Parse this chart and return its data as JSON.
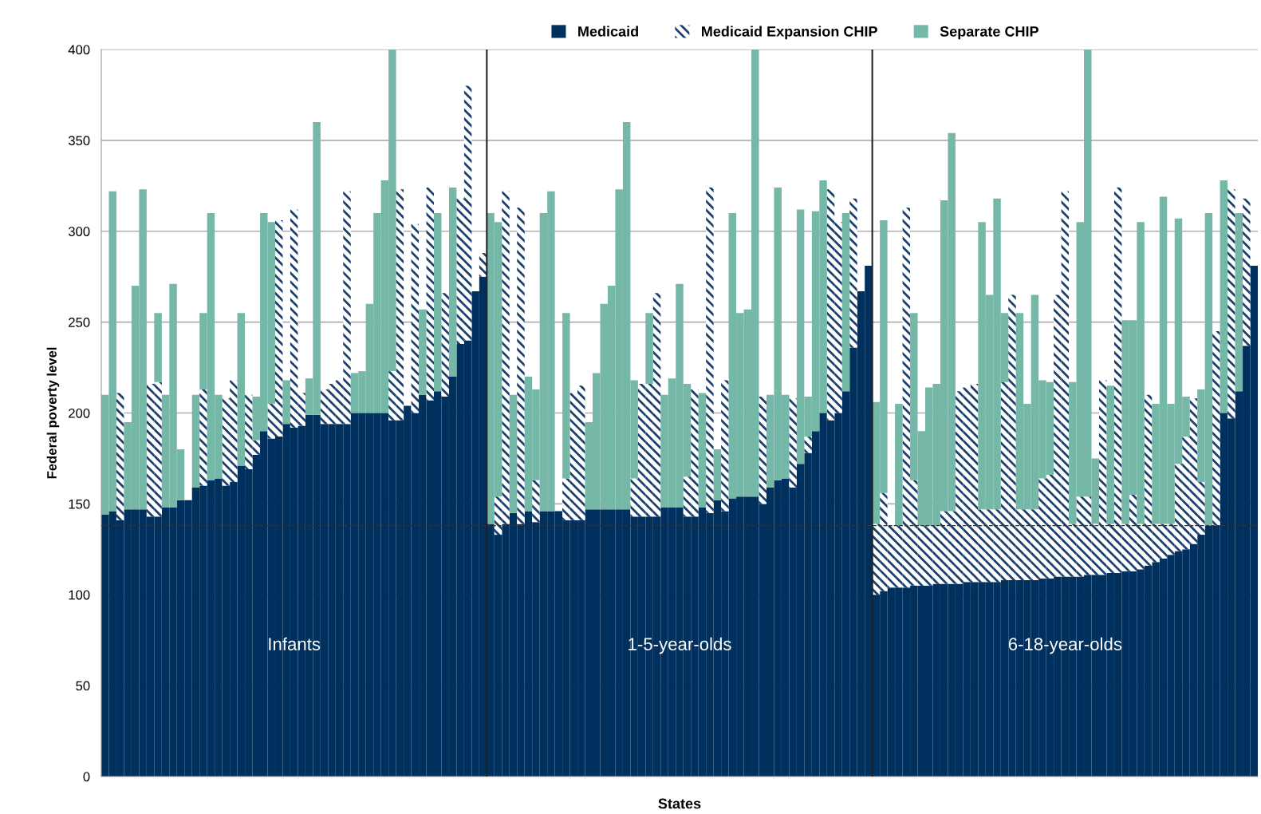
{
  "chart_data": {
    "type": "bar",
    "stacked": true,
    "xlabel": "States",
    "ylabel": "Federal poverty level",
    "ylim": [
      0,
      400
    ],
    "yticks": [
      0,
      50,
      100,
      150,
      200,
      250,
      300,
      350,
      400
    ],
    "grid": "y",
    "legend": "top",
    "annotations": [
      "Infants",
      "1-5-year-olds",
      "6-18-year-olds"
    ],
    "ref_lines": [
      {
        "axis": "y",
        "value": 138,
        "line_style": "dashed",
        "color": "#333333"
      }
    ],
    "categories": [
      null,
      null,
      null,
      null,
      null,
      null,
      null,
      null,
      null,
      null,
      null,
      null,
      null,
      null,
      null,
      null,
      null,
      null,
      null,
      null,
      null,
      null,
      null,
      null,
      null,
      null,
      null,
      null,
      null,
      null,
      null,
      null,
      null,
      null,
      null,
      null,
      null,
      null,
      null,
      null,
      null,
      null,
      null,
      null,
      null,
      null,
      null,
      null,
      null,
      null,
      null,
      null,
      null,
      null,
      null,
      null,
      null,
      null,
      null,
      null,
      null,
      null,
      null,
      null,
      null,
      null,
      null,
      null,
      null,
      null,
      null,
      null,
      null,
      null,
      null,
      null,
      null,
      null,
      null,
      null,
      null,
      null,
      null,
      null,
      null,
      null,
      null,
      null,
      null,
      null,
      null,
      null,
      null,
      null,
      null,
      null,
      null,
      null,
      null,
      null,
      null,
      null,
      null,
      null,
      null,
      null,
      null,
      null,
      null,
      null,
      null,
      null,
      null,
      null,
      null,
      null,
      null,
      null,
      null,
      null,
      null,
      null,
      null,
      null,
      null,
      null,
      null,
      null,
      null,
      null,
      null,
      null,
      null,
      null,
      null,
      null,
      null,
      null,
      null,
      null,
      null,
      null,
      null,
      null,
      null,
      null,
      null,
      null,
      null,
      null,
      null,
      null,
      null
    ],
    "series": [
      {
        "name": "Medicaid",
        "color": "#00305e",
        "values": [
          144,
          146,
          141,
          147,
          147,
          147,
          143,
          143,
          148,
          148,
          152,
          152,
          159,
          160,
          163,
          164,
          160,
          162,
          171,
          169,
          177,
          190,
          186,
          187,
          194,
          192,
          193,
          199,
          199,
          194,
          194,
          194,
          194,
          200,
          200,
          200,
          200,
          200,
          196,
          196,
          204,
          200,
          210,
          207,
          212,
          209,
          220,
          238,
          240,
          267,
          275,
          139,
          133,
          139,
          145,
          139,
          146,
          140,
          146,
          146,
          146,
          141,
          141,
          141,
          147,
          147,
          147,
          147,
          147,
          147,
          143,
          143,
          143,
          143,
          148,
          148,
          148,
          143,
          143,
          148,
          145,
          152,
          146,
          153,
          154,
          154,
          154,
          150,
          159,
          163,
          164,
          159,
          172,
          178,
          190,
          200,
          196,
          200,
          212,
          236,
          267,
          281,
          100,
          102,
          104,
          104,
          104,
          105,
          105,
          105,
          106,
          106,
          106,
          106,
          107,
          107,
          107,
          107,
          107,
          108,
          108,
          108,
          108,
          108,
          109,
          109,
          110,
          110,
          110,
          110,
          111,
          111,
          111,
          112,
          112,
          113,
          113,
          114,
          116,
          118,
          120,
          122,
          124,
          125,
          128,
          133,
          138,
          138,
          200,
          197,
          212,
          237,
          281
        ]
      },
      {
        "name": "Medicaid Expansion CHIP",
        "color": "#1c3f6e",
        "values": [
          null,
          null,
          70,
          null,
          null,
          null,
          73,
          74,
          null,
          null,
          null,
          null,
          null,
          53,
          null,
          null,
          48,
          56,
          null,
          41,
          8,
          null,
          19,
          119,
          null,
          120,
          18,
          null,
          null,
          19,
          22,
          24,
          128,
          null,
          null,
          null,
          null,
          null,
          27,
          127,
          null,
          104,
          null,
          117,
          null,
          57,
          null,
          80,
          140,
          null,
          13,
          null,
          21,
          183,
          null,
          174,
          null,
          23,
          null,
          null,
          null,
          23,
          70,
          74,
          null,
          null,
          null,
          null,
          null,
          null,
          21,
          73,
          73,
          123,
          null,
          null,
          null,
          22,
          70,
          null,
          179,
          null,
          72,
          null,
          null,
          null,
          null,
          59,
          null,
          null,
          null,
          49,
          null,
          9,
          null,
          null,
          127,
          105,
          null,
          82,
          null,
          null,
          39,
          54,
          34,
          34,
          209,
          58,
          33,
          33,
          32,
          40,
          40,
          106,
          107,
          109,
          40,
          40,
          40,
          109,
          157,
          39,
          39,
          39,
          55,
          57,
          155,
          212,
          29,
          44,
          43,
          28,
          107,
          27,
          212,
          26,
          42,
          25,
          94,
          21,
          19,
          17,
          48,
          62,
          80,
          29,
          null,
          107,
          null,
          126,
          null,
          81,
          null
        ]
      },
      {
        "name": "Separate CHIP",
        "color": "#76b8a8",
        "values": [
          66,
          176,
          null,
          48,
          123,
          176,
          null,
          38,
          62,
          123,
          28,
          null,
          51,
          42,
          147,
          46,
          null,
          null,
          84,
          null,
          24,
          120,
          100,
          null,
          24,
          null,
          null,
          20,
          161,
          null,
          null,
          null,
          null,
          22,
          23,
          60,
          110,
          128,
          177,
          null,
          null,
          null,
          47,
          null,
          98,
          null,
          104,
          null,
          null,
          null,
          null,
          171,
          151,
          null,
          65,
          null,
          74,
          50,
          164,
          176,
          null,
          91,
          null,
          null,
          48,
          75,
          113,
          123,
          176,
          213,
          54,
          null,
          39,
          null,
          62,
          71,
          123,
          51,
          null,
          63,
          null,
          28,
          null,
          157,
          101,
          103,
          246,
          null,
          51,
          161,
          46,
          null,
          140,
          22,
          121,
          128,
          null,
          null,
          98,
          null,
          null,
          null,
          67,
          150,
          null,
          67,
          null,
          92,
          52,
          76,
          78,
          171,
          208,
          null,
          null,
          null,
          158,
          118,
          171,
          38,
          null,
          108,
          58,
          118,
          54,
          51,
          null,
          null,
          78,
          151,
          246,
          36,
          null,
          76,
          null,
          112,
          96,
          166,
          null,
          66,
          180,
          66,
          135,
          22,
          null,
          51,
          172,
          null,
          128,
          null,
          98,
          null,
          null
        ]
      }
    ]
  }
}
